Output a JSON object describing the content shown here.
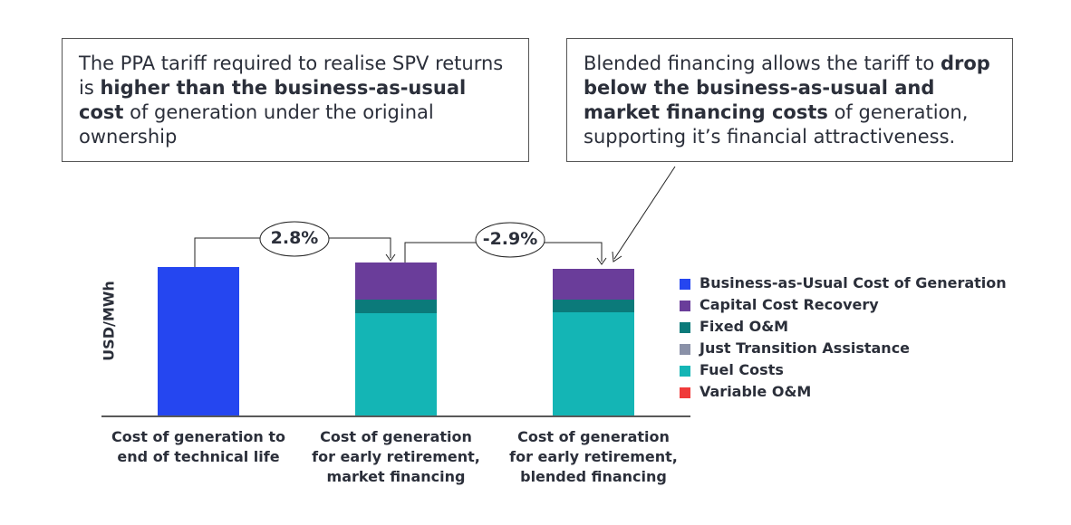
{
  "chart_data": {
    "type": "bar",
    "stacked": true,
    "y_label": "USD/MWh",
    "categories": [
      "Cost of generation to\nend of technical life",
      "Cost of generation\nfor early retirement,\nmarket financing",
      "Cost of generation\nfor early retirement,\nblended financing"
    ],
    "series": [
      {
        "name": "Business-as-Usual Cost of Generation",
        "color": "#2546f0",
        "values": [
          164,
          null,
          null
        ]
      },
      {
        "name": "Capital Cost Recovery",
        "color": "#6a3d9a",
        "values": [
          null,
          41,
          34
        ]
      },
      {
        "name": "Fixed O&M",
        "color": "#0b7a7a",
        "values": [
          null,
          15,
          14
        ]
      },
      {
        "name": "Just Transition Assistance",
        "color": "#8a91a8",
        "values": [
          null,
          0,
          0
        ]
      },
      {
        "name": "Fuel Costs",
        "color": "#14b5b5",
        "values": [
          null,
          113,
          114
        ]
      },
      {
        "name": "Variable O&M",
        "color": "#f03a3a",
        "values": [
          null,
          0,
          0
        ]
      }
    ],
    "ylim": [
      0,
      180
    ],
    "comparisons": [
      "2.8%",
      "-2.9%"
    ],
    "annotations": [
      {
        "parts": [
          {
            "text": "The PPA tariff required to realise SPV returns is ",
            "bold": false
          },
          {
            "text": "higher than the business-as-usual cost",
            "bold": true
          },
          {
            "text": " of generation under the original ownership",
            "bold": false
          }
        ]
      },
      {
        "parts": [
          {
            "text": "Blended financing allows the tariff to ",
            "bold": false
          },
          {
            "text": "drop below the business-as-usual and market financing costs",
            "bold": true
          },
          {
            "text": " of generation, supporting it’s financial attractiveness.",
            "bold": false
          }
        ]
      }
    ]
  }
}
